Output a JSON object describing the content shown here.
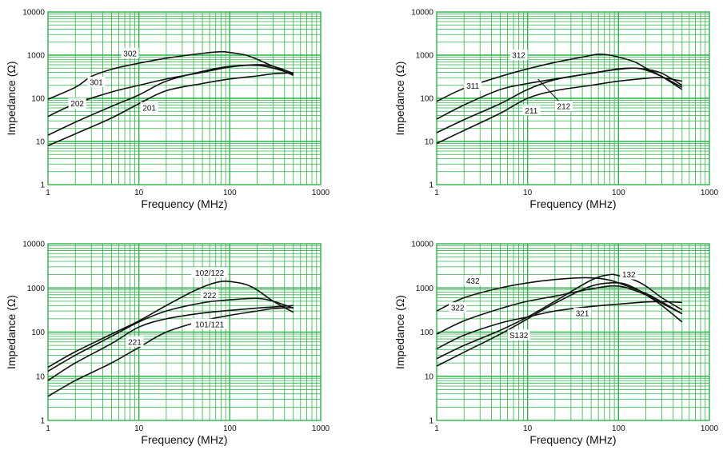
{
  "colors": {
    "grid": "#2fb04a",
    "curve": "#111111",
    "text": "#111111",
    "label_bg": "#ffffff"
  },
  "chart_data": [
    {
      "type": "line",
      "title": "",
      "xlabel": "Frequency (MHz)",
      "ylabel": "Impedance (Ω)",
      "x_scale": "log",
      "y_scale": "log",
      "xlim": [
        1,
        1000
      ],
      "ylim": [
        1,
        10000
      ],
      "grid": true,
      "x_ticks": [
        "1",
        "10",
        "100",
        "1000"
      ],
      "y_ticks": [
        "1",
        "10",
        "100",
        "1000",
        "10000"
      ],
      "series": [
        {
          "name": "302",
          "x": [
            1,
            2,
            3,
            5,
            10,
            20,
            50,
            80,
            100,
            150,
            200,
            300,
            500
          ],
          "y": [
            95,
            180,
            320,
            470,
            650,
            850,
            1100,
            1200,
            1150,
            1000,
            800,
            550,
            340
          ],
          "label_x": 8,
          "label_y": 1100
        },
        {
          "name": "301",
          "x": [
            1,
            2,
            5,
            10,
            20,
            50,
            100,
            200,
            300,
            500
          ],
          "y": [
            38,
            75,
            140,
            200,
            280,
            400,
            530,
            600,
            550,
            380
          ],
          "label_x": 3.4,
          "label_y": 235
        },
        {
          "name": "202",
          "x": [
            1,
            2,
            5,
            10,
            20,
            50,
            100,
            200,
            300,
            500
          ],
          "y": [
            14,
            28,
            65,
            120,
            250,
            420,
            550,
            580,
            500,
            360
          ],
          "label_x": 2.1,
          "label_y": 75
        },
        {
          "name": "201",
          "x": [
            1,
            2,
            5,
            10,
            20,
            50,
            100,
            200,
            300,
            500
          ],
          "y": [
            8,
            15,
            35,
            75,
            150,
            220,
            280,
            330,
            370,
            390
          ],
          "label_x": 13,
          "label_y": 60
        }
      ]
    },
    {
      "type": "line",
      "title": "",
      "xlabel": "Frequency (MHz)",
      "ylabel": "Impedance (Ω)",
      "x_scale": "log",
      "y_scale": "log",
      "xlim": [
        1,
        1000
      ],
      "ylim": [
        1,
        10000
      ],
      "grid": true,
      "x_ticks": [
        "1",
        "10",
        "100",
        "1000"
      ],
      "y_ticks": [
        "1",
        "10",
        "100",
        "1000",
        "10000"
      ],
      "series": [
        {
          "name": "312",
          "x": [
            1,
            2,
            5,
            10,
            20,
            40,
            60,
            80,
            100,
            150,
            200,
            300,
            500
          ],
          "y": [
            85,
            170,
            320,
            480,
            680,
            900,
            1050,
            1000,
            900,
            700,
            500,
            320,
            160
          ],
          "label_x": 8,
          "label_y": 1000
        },
        {
          "name": "311",
          "x": [
            1,
            2,
            5,
            10,
            20,
            50,
            100,
            150,
            200,
            300,
            500
          ],
          "y": [
            33,
            70,
            160,
            220,
            280,
            380,
            480,
            500,
            450,
            320,
            180
          ],
          "label_x": 2.5,
          "label_y": 195
        },
        {
          "name": "212",
          "x": [
            1,
            2,
            5,
            10,
            20,
            50,
            100,
            150,
            200,
            300,
            500
          ],
          "y": [
            16,
            32,
            75,
            160,
            270,
            380,
            470,
            500,
            470,
            380,
            200
          ],
          "label_x": 25,
          "label_y": 65,
          "pointer_x": 13,
          "pointer_y": 280
        },
        {
          "name": "211",
          "x": [
            1,
            2,
            5,
            10,
            20,
            50,
            100,
            200,
            300,
            500
          ],
          "y": [
            9,
            18,
            45,
            100,
            150,
            200,
            250,
            290,
            300,
            250
          ],
          "label_x": 11,
          "label_y": 52
        }
      ]
    },
    {
      "type": "line",
      "title": "",
      "xlabel": "Frequency (MHz)",
      "ylabel": "Impedance (Ω)",
      "x_scale": "log",
      "y_scale": "log",
      "xlim": [
        1,
        1000
      ],
      "ylim": [
        1,
        10000
      ],
      "grid": true,
      "x_ticks": [
        "1",
        "10",
        "100",
        "1000"
      ],
      "y_ticks": [
        "1",
        "10",
        "100",
        "1000",
        "10000"
      ],
      "series": [
        {
          "name": "102/122",
          "x": [
            1,
            2,
            5,
            10,
            20,
            40,
            60,
            80,
            100,
            150,
            200,
            300,
            500
          ],
          "y": [
            16,
            36,
            90,
            180,
            400,
            850,
            1200,
            1400,
            1400,
            1200,
            900,
            500,
            280
          ],
          "label_x": 60,
          "label_y": 2200
        },
        {
          "name": "222",
          "x": [
            1,
            2,
            5,
            10,
            20,
            50,
            100,
            200,
            300,
            500
          ],
          "y": [
            13,
            30,
            80,
            170,
            300,
            460,
            540,
            580,
            500,
            350
          ],
          "label_x": 60,
          "label_y": 680
        },
        {
          "name": "221",
          "x": [
            1,
            2,
            5,
            10,
            20,
            50,
            100,
            200,
            300,
            500
          ],
          "y": [
            8,
            20,
            55,
            130,
            200,
            270,
            310,
            350,
            370,
            400
          ],
          "label_x": 9,
          "label_y": 60
        },
        {
          "name": "101/121",
          "x": [
            1,
            2,
            5,
            10,
            20,
            50,
            100,
            200,
            300,
            500
          ],
          "y": [
            3.5,
            8,
            20,
            45,
            100,
            180,
            240,
            300,
            340,
            360
          ],
          "label_x": 60,
          "label_y": 150
        }
      ]
    },
    {
      "type": "line",
      "title": "",
      "xlabel": "Frequency (MHz)",
      "ylabel": "Impedance (Ω)",
      "x_scale": "log",
      "y_scale": "log",
      "xlim": [
        1,
        1000
      ],
      "ylim": [
        1,
        10000
      ],
      "grid": true,
      "x_ticks": [
        "1",
        "10",
        "100",
        "1000"
      ],
      "y_ticks": [
        "1",
        "10",
        "100",
        "1000",
        "10000"
      ],
      "series": [
        {
          "name": "432",
          "x": [
            1,
            2,
            5,
            10,
            20,
            40,
            60,
            80,
            100,
            200,
            300,
            500
          ],
          "y": [
            300,
            600,
            1000,
            1300,
            1550,
            1700,
            1650,
            1500,
            1300,
            750,
            480,
            260
          ],
          "label_x": 2.5,
          "label_y": 1450
        },
        {
          "name": "322",
          "x": [
            1,
            2,
            5,
            10,
            20,
            50,
            100,
            200,
            300,
            500
          ],
          "y": [
            90,
            180,
            340,
            500,
            650,
            950,
            1100,
            700,
            450,
            260
          ],
          "label_x": 1.7,
          "label_y": 355
        },
        {
          "name": "132",
          "x": [
            1,
            2,
            5,
            10,
            20,
            50,
            80,
            100,
            150,
            200,
            300,
            500
          ],
          "y": [
            25,
            50,
            110,
            220,
            500,
            1500,
            2000,
            1900,
            1500,
            1100,
            600,
            320
          ],
          "label_x": 130,
          "label_y": 2000
        },
        {
          "name": "S132",
          "x": [
            1,
            2,
            5,
            10,
            20,
            50,
            100,
            150,
            200,
            300,
            500
          ],
          "y": [
            17,
            35,
            90,
            200,
            450,
            1100,
            1300,
            1000,
            700,
            400,
            170
          ],
          "label_x": 8,
          "label_y": 85
        },
        {
          "name": "321",
          "x": [
            1,
            2,
            5,
            10,
            20,
            50,
            100,
            200,
            300,
            500
          ],
          "y": [
            42,
            85,
            160,
            220,
            300,
            380,
            430,
            480,
            490,
            470
          ],
          "label_x": 40,
          "label_y": 265
        }
      ]
    }
  ]
}
